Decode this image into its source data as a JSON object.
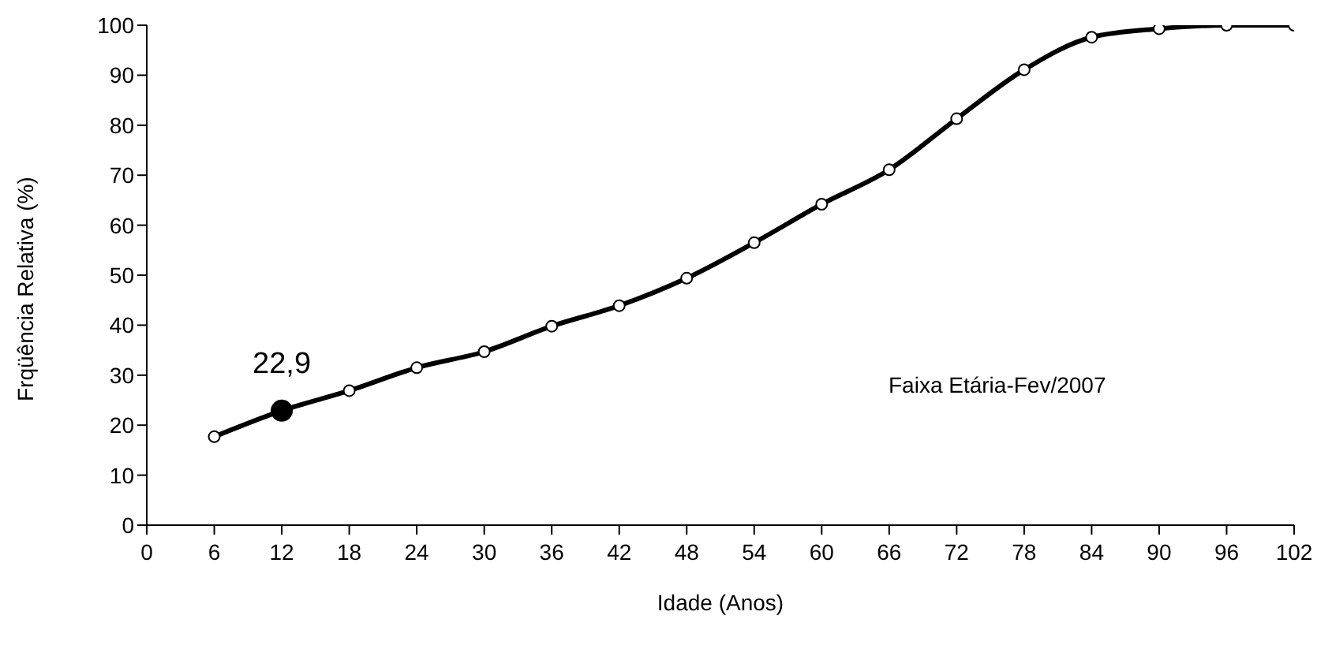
{
  "chart_data": {
    "type": "line",
    "xlabel": "Idade (Anos)",
    "ylabel": "Frqüência Relativa (%)",
    "annotations": [
      "Faixa Etária-Fev/2007"
    ],
    "x": [
      6,
      12,
      18,
      24,
      30,
      36,
      42,
      48,
      54,
      60,
      66,
      72,
      78,
      84,
      90,
      96,
      102
    ],
    "series": [
      {
        "color": "#000000",
        "colors": [
          "#ffffff",
          "#000000",
          "#ffffff",
          "#ffffff",
          "#ffffff",
          "#ffffff",
          "#ffffff",
          "#ffffff",
          "#ffffff",
          "#ffffff",
          "#ffffff",
          "#ffffff",
          "#ffffff",
          "#ffffff",
          "#ffffff",
          "#ffffff",
          "#ffffff"
        ],
        "values": [
          17.7,
          22.9,
          26.9,
          31.5,
          34.7,
          39.8,
          43.9,
          49.4,
          56.5,
          64.2,
          71.1,
          81.3,
          91.1,
          97.6,
          99.3,
          100,
          100
        ],
        "value_labels": [
          null,
          "22,9",
          null,
          null,
          null,
          null,
          null,
          null,
          null,
          null,
          null,
          null,
          null,
          null,
          null,
          null,
          null
        ]
      }
    ],
    "xlim": [
      0,
      102
    ],
    "xticks": [
      0,
      6,
      12,
      18,
      24,
      30,
      36,
      42,
      48,
      54,
      60,
      66,
      72,
      78,
      84,
      90,
      96,
      102
    ],
    "ylim": [
      0,
      100
    ],
    "yticks": [
      0,
      10,
      20,
      30,
      40,
      50,
      60,
      70,
      80,
      90,
      100
    ],
    "grid": false,
    "legend": false,
    "marker": "circle",
    "line_style": "solid"
  }
}
